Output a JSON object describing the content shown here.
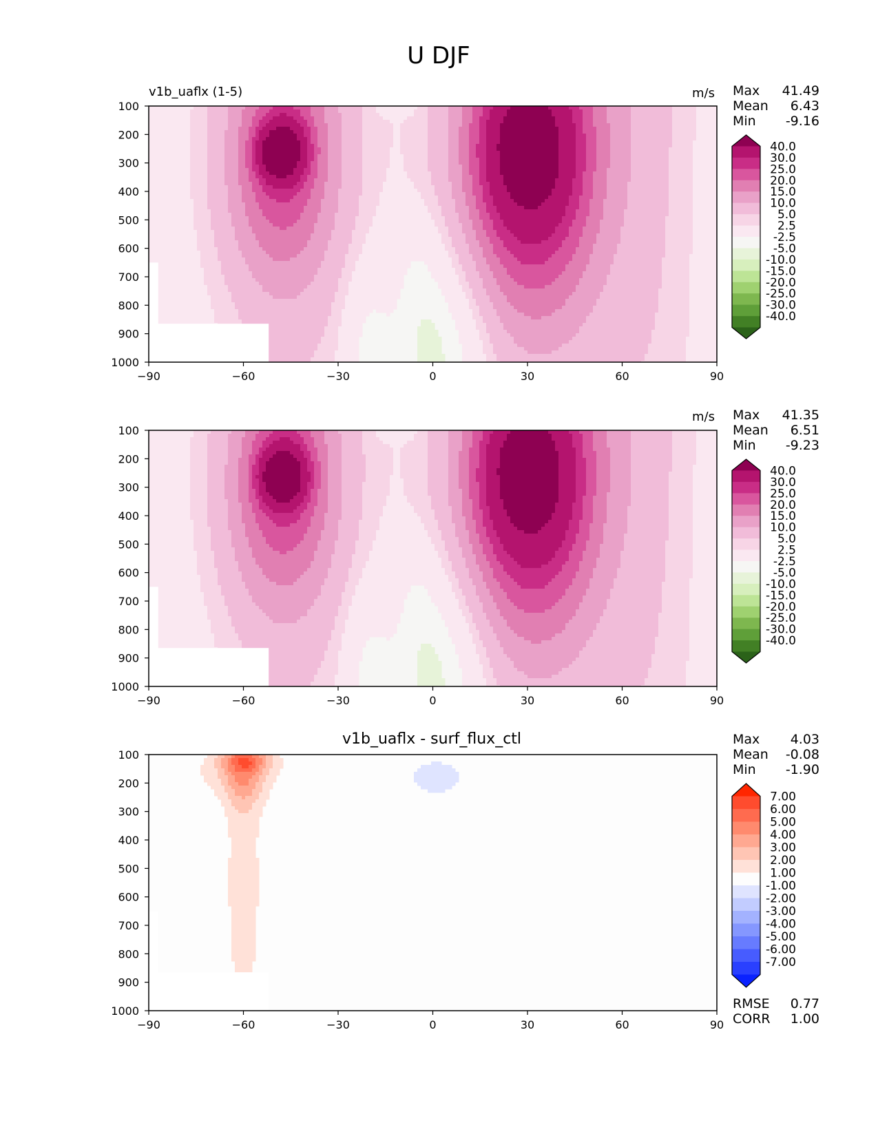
{
  "figure": {
    "title": "U DJF"
  },
  "chart_data": [
    {
      "type": "contour",
      "title": "v1b_uaflx (1-5)",
      "center_title": "",
      "units": "m/s",
      "xlabel": "",
      "ylabel": "",
      "xlim": [
        -90,
        90
      ],
      "ylim": [
        1000,
        100
      ],
      "xticks": [
        "−90",
        "−60",
        "−30",
        "0",
        "30",
        "60",
        "90"
      ],
      "yticks": [
        "100",
        "200",
        "300",
        "400",
        "500",
        "600",
        "700",
        "800",
        "900",
        "1000"
      ],
      "stats": [
        {
          "label": "Max",
          "value": "41.49"
        },
        {
          "label": "Mean",
          "value": "6.43"
        },
        {
          "label": "Min",
          "value": "-9.16"
        }
      ],
      "colorbar": {
        "levels": [
          "40.0",
          "30.0",
          "25.0",
          "20.0",
          "15.0",
          "10.0",
          "5.0",
          "2.5",
          "-2.5",
          "-5.0",
          "-10.0",
          "-15.0",
          "-20.0",
          "-25.0",
          "-30.0",
          "-40.0"
        ],
        "colors": [
          "#8e0152",
          "#b4146e",
          "#c92d86",
          "#d9569e",
          "#e17fb2",
          "#e9a1c8",
          "#f1bcd9",
          "#f7d5e6",
          "#fae8f1",
          "#f6f6f4",
          "#e7f3d9",
          "#d7efbd",
          "#bde496",
          "#9fd170",
          "#7eb74f",
          "#5f9f39",
          "#428025",
          "#2b6219"
        ]
      },
      "fields": [
        {
          "value": -1,
          "lat": -48,
          "p": 280,
          "slat": 10,
          "sp": 160
        },
        {
          "value": 7,
          "lat": -49,
          "p": 320,
          "slat": 14,
          "sp": 330
        },
        {
          "value": 12,
          "lat": -48,
          "p": 300,
          "slat": 20,
          "sp": 450
        },
        {
          "value": 18,
          "lat": -47,
          "p": 250,
          "slat": 8,
          "sp": 120
        },
        {
          "value": 20,
          "lat": -49,
          "p": 270,
          "slat": 6,
          "sp": 80
        },
        {
          "value": 28,
          "lat": 30,
          "p": 320,
          "slat": 22,
          "sp": 520
        },
        {
          "value": 15,
          "lat": 30,
          "p": 250,
          "slat": 14,
          "sp": 240
        },
        {
          "value": 8,
          "lat": 29,
          "p": 220,
          "slat": 6,
          "sp": 80
        },
        {
          "value": -7,
          "lat": 7,
          "p": 900,
          "slat": 14,
          "sp": 400
        },
        {
          "value": -5,
          "lat": -21,
          "p": 950,
          "slat": 8,
          "sp": 300
        },
        {
          "value": -3,
          "lat": -12,
          "p": 110,
          "slat": 6,
          "sp": 25
        }
      ],
      "mask": {
        "from_lat": -90,
        "to_lat": -52,
        "from_p": 865
      }
    },
    {
      "type": "contour",
      "title": "",
      "center_title": "",
      "units": "m/s",
      "xlabel": "",
      "ylabel": "",
      "xlim": [
        -90,
        90
      ],
      "ylim": [
        1000,
        100
      ],
      "xticks": [
        "−90",
        "−60",
        "−30",
        "0",
        "30",
        "60",
        "90"
      ],
      "yticks": [
        "100",
        "200",
        "300",
        "400",
        "500",
        "600",
        "700",
        "800",
        "900",
        "1000"
      ],
      "stats": [
        {
          "label": "Max",
          "value": "41.35"
        },
        {
          "label": "Mean",
          "value": "6.51"
        },
        {
          "label": "Min",
          "value": "-9.23"
        }
      ],
      "colorbar": {
        "levels": [
          "40.0",
          "30.0",
          "25.0",
          "20.0",
          "15.0",
          "10.0",
          "5.0",
          "2.5",
          "-2.5",
          "-5.0",
          "-10.0",
          "-15.0",
          "-20.0",
          "-25.0",
          "-30.0",
          "-40.0"
        ],
        "colors": [
          "#8e0152",
          "#b4146e",
          "#c92d86",
          "#d9569e",
          "#e17fb2",
          "#e9a1c8",
          "#f1bcd9",
          "#f7d5e6",
          "#fae8f1",
          "#f6f6f4",
          "#e7f3d9",
          "#d7efbd",
          "#bde496",
          "#9fd170",
          "#7eb74f",
          "#5f9f39",
          "#428025",
          "#2b6219"
        ]
      },
      "fields": [
        {
          "value": -1,
          "lat": -48,
          "p": 280,
          "slat": 10,
          "sp": 160
        },
        {
          "value": 7,
          "lat": -48,
          "p": 320,
          "slat": 14,
          "sp": 330
        },
        {
          "value": 12,
          "lat": -48,
          "p": 300,
          "slat": 20,
          "sp": 450
        },
        {
          "value": 18,
          "lat": -47,
          "p": 250,
          "slat": 8,
          "sp": 120
        },
        {
          "value": 20,
          "lat": -48,
          "p": 270,
          "slat": 6,
          "sp": 80
        },
        {
          "value": 28,
          "lat": 30,
          "p": 320,
          "slat": 22,
          "sp": 520
        },
        {
          "value": 15,
          "lat": 30,
          "p": 250,
          "slat": 14,
          "sp": 240
        },
        {
          "value": 8,
          "lat": 29,
          "p": 220,
          "slat": 6,
          "sp": 80
        },
        {
          "value": -7,
          "lat": 7,
          "p": 900,
          "slat": 14,
          "sp": 400
        },
        {
          "value": -5,
          "lat": -21,
          "p": 950,
          "slat": 8,
          "sp": 300
        },
        {
          "value": -3,
          "lat": -12,
          "p": 110,
          "slat": 6,
          "sp": 25
        }
      ],
      "mask": {
        "from_lat": -90,
        "to_lat": -52,
        "from_p": 865
      }
    },
    {
      "type": "contour",
      "title": "",
      "center_title": "v1b_uaflx - surf_flux_ctl",
      "units": "",
      "xlabel": "",
      "ylabel": "",
      "xlim": [
        -90,
        90
      ],
      "ylim": [
        1000,
        100
      ],
      "xticks": [
        "−90",
        "−60",
        "−30",
        "0",
        "30",
        "60",
        "90"
      ],
      "yticks": [
        "100",
        "200",
        "300",
        "400",
        "500",
        "600",
        "700",
        "800",
        "900",
        "1000"
      ],
      "stats": [
        {
          "label": "Max",
          "value": "4.03"
        },
        {
          "label": "Mean",
          "value": "-0.08"
        },
        {
          "label": "Min",
          "value": "-1.90"
        }
      ],
      "extra_stats": [
        {
          "label": "RMSE",
          "value": "0.77"
        },
        {
          "label": "CORR",
          "value": "1.00"
        }
      ],
      "colorbar": {
        "levels": [
          "7.00",
          "6.00",
          "5.00",
          "4.00",
          "3.00",
          "2.00",
          "1.00",
          "-1.00",
          "-2.00",
          "-3.00",
          "-4.00",
          "-5.00",
          "-6.00",
          "-7.00"
        ],
        "colors": [
          "#ff2600",
          "#ff4c2e",
          "#ff6b4f",
          "#ff8a6e",
          "#ffa891",
          "#ffc5b4",
          "#ffe1d8",
          "#fdfdfd",
          "#dfe4ff",
          "#c2ccff",
          "#a3b2ff",
          "#8597ff",
          "#677bff",
          "#475cff",
          "#2a40ff",
          "#0a22ff"
        ]
      },
      "fields": [
        {
          "value": 1.5,
          "lat": -60,
          "p": 550,
          "slat": 7,
          "sp": 640
        },
        {
          "value": 1.5,
          "lat": -62,
          "p": 160,
          "slat": 16,
          "sp": 90
        },
        {
          "value": 1.8,
          "lat": -60,
          "p": 190,
          "slat": 6,
          "sp": 110
        },
        {
          "value": 3.0,
          "lat": -59,
          "p": 120,
          "slat": 8,
          "sp": 40
        },
        {
          "value": -1.5,
          "lat": 1,
          "p": 180,
          "slat": 11,
          "sp": 80
        },
        {
          "value": -0.8,
          "lat": 83,
          "p": 380,
          "slat": 1.5,
          "sp": 70
        }
      ],
      "mask": {
        "from_lat": -90,
        "to_lat": -52,
        "from_p": 865
      }
    }
  ]
}
